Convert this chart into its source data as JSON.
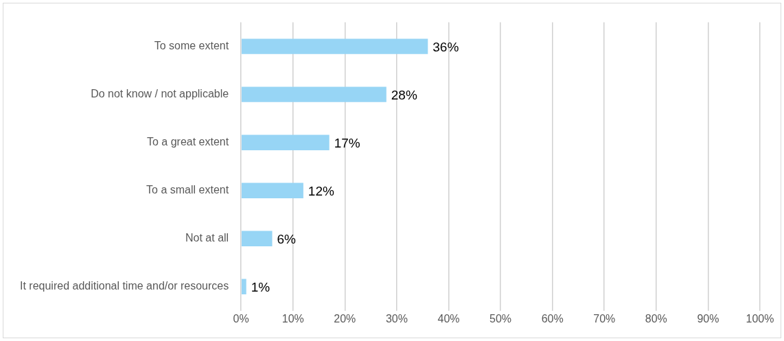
{
  "chart_data": {
    "type": "bar",
    "orientation": "horizontal",
    "categories": [
      "To some extent",
      "Do not know / not applicable",
      "To a great extent",
      "To a small extent",
      "Not at all",
      "It required additional time and/or resources"
    ],
    "values": [
      36,
      28,
      17,
      12,
      6,
      1
    ],
    "color": "#97d5f5",
    "value_labels": [
      "36%",
      "28%",
      "17%",
      "12%",
      "6%",
      "1%"
    ],
    "xlim": [
      0,
      100
    ],
    "xticks": [
      {
        "value": 0,
        "label": "0%"
      },
      {
        "value": 10,
        "label": "10%"
      },
      {
        "value": 20,
        "label": "20%"
      },
      {
        "value": 30,
        "label": "30%"
      },
      {
        "value": 40,
        "label": "40%"
      },
      {
        "value": 50,
        "label": "50%"
      },
      {
        "value": 60,
        "label": "60%"
      },
      {
        "value": 70,
        "label": "70%"
      },
      {
        "value": 80,
        "label": "80%"
      },
      {
        "value": 90,
        "label": "90%"
      },
      {
        "value": 100,
        "label": "100%"
      }
    ],
    "grid": "x",
    "legend": false
  }
}
